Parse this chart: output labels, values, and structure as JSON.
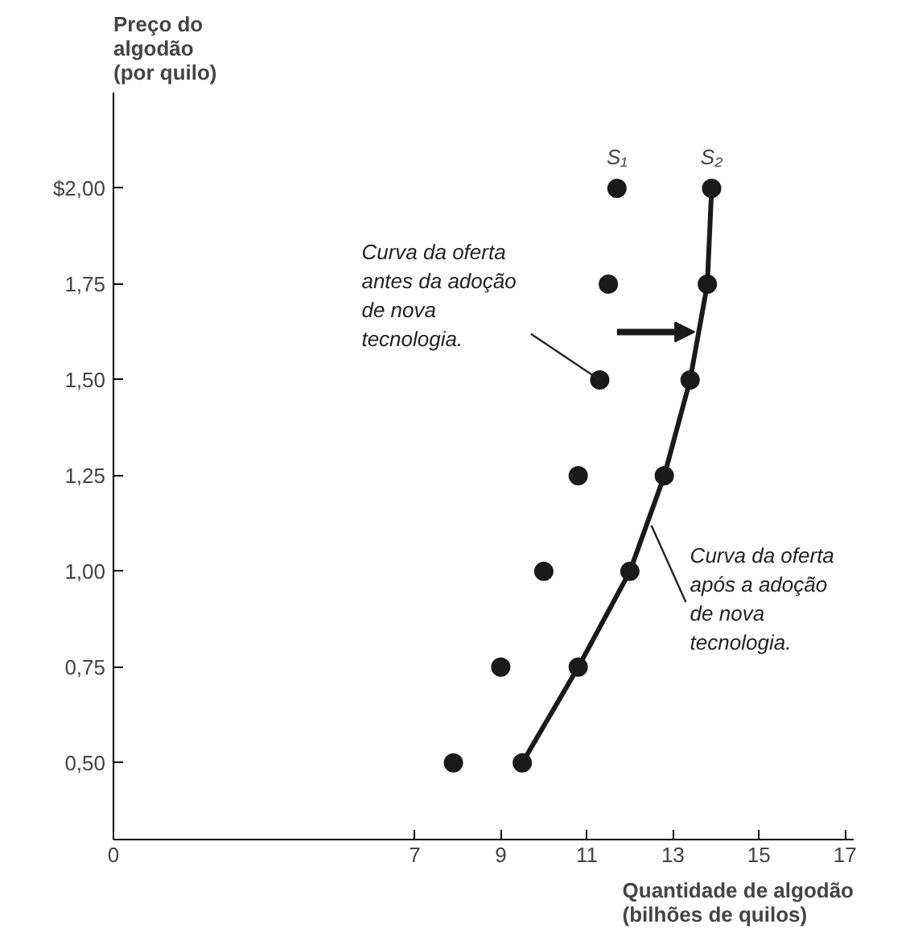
{
  "chart_data": {
    "type": "scatter",
    "xlabel": "Quantidade de algodão\n(bilhões de quilos)",
    "ylabel": "Preço do\nalgodão\n(por quilo)",
    "series": [
      {
        "name": "S₁",
        "color": "#1a1a1a",
        "x": [
          7.9,
          9.0,
          10.0,
          10.8,
          11.3,
          11.5,
          11.7
        ],
        "values": [
          0.5,
          0.75,
          1.0,
          1.25,
          1.5,
          1.75,
          2.0
        ]
      },
      {
        "name": "S₂",
        "type": "line",
        "marker": "circle",
        "color": "#1a1a1a",
        "x": [
          9.5,
          10.8,
          12.0,
          12.8,
          13.4,
          13.8,
          13.9
        ],
        "values": [
          0.5,
          0.75,
          1.0,
          1.25,
          1.5,
          1.75,
          2.0
        ]
      }
    ],
    "marker": "circle",
    "xlim": [
      0,
      17.2
    ],
    "ylim": [
      0.3,
      2.25
    ],
    "xticks": [
      0,
      7,
      9,
      11,
      13,
      15,
      17
    ],
    "yticks": [
      {
        "value": 0.5,
        "label": "0,50"
      },
      {
        "value": 0.75,
        "label": "0,75"
      },
      {
        "value": 1.0,
        "label": "1,00"
      },
      {
        "value": 1.25,
        "label": "1,25"
      },
      {
        "value": 1.5,
        "label": "1,50"
      },
      {
        "value": 1.75,
        "label": "1,75"
      },
      {
        "value": 2.0,
        "label": "$2,00"
      }
    ],
    "annotations": [
      {
        "text": "Curva da oferta\nantes da adoção\nde nova\ntecnologia.",
        "x": 11.3,
        "y": 1.5
      },
      {
        "text": "Curva da oferta\napós a adoção\nde nova\ntecnologia.",
        "x": 12.5,
        "y": 1.12
      }
    ],
    "grid": false
  }
}
